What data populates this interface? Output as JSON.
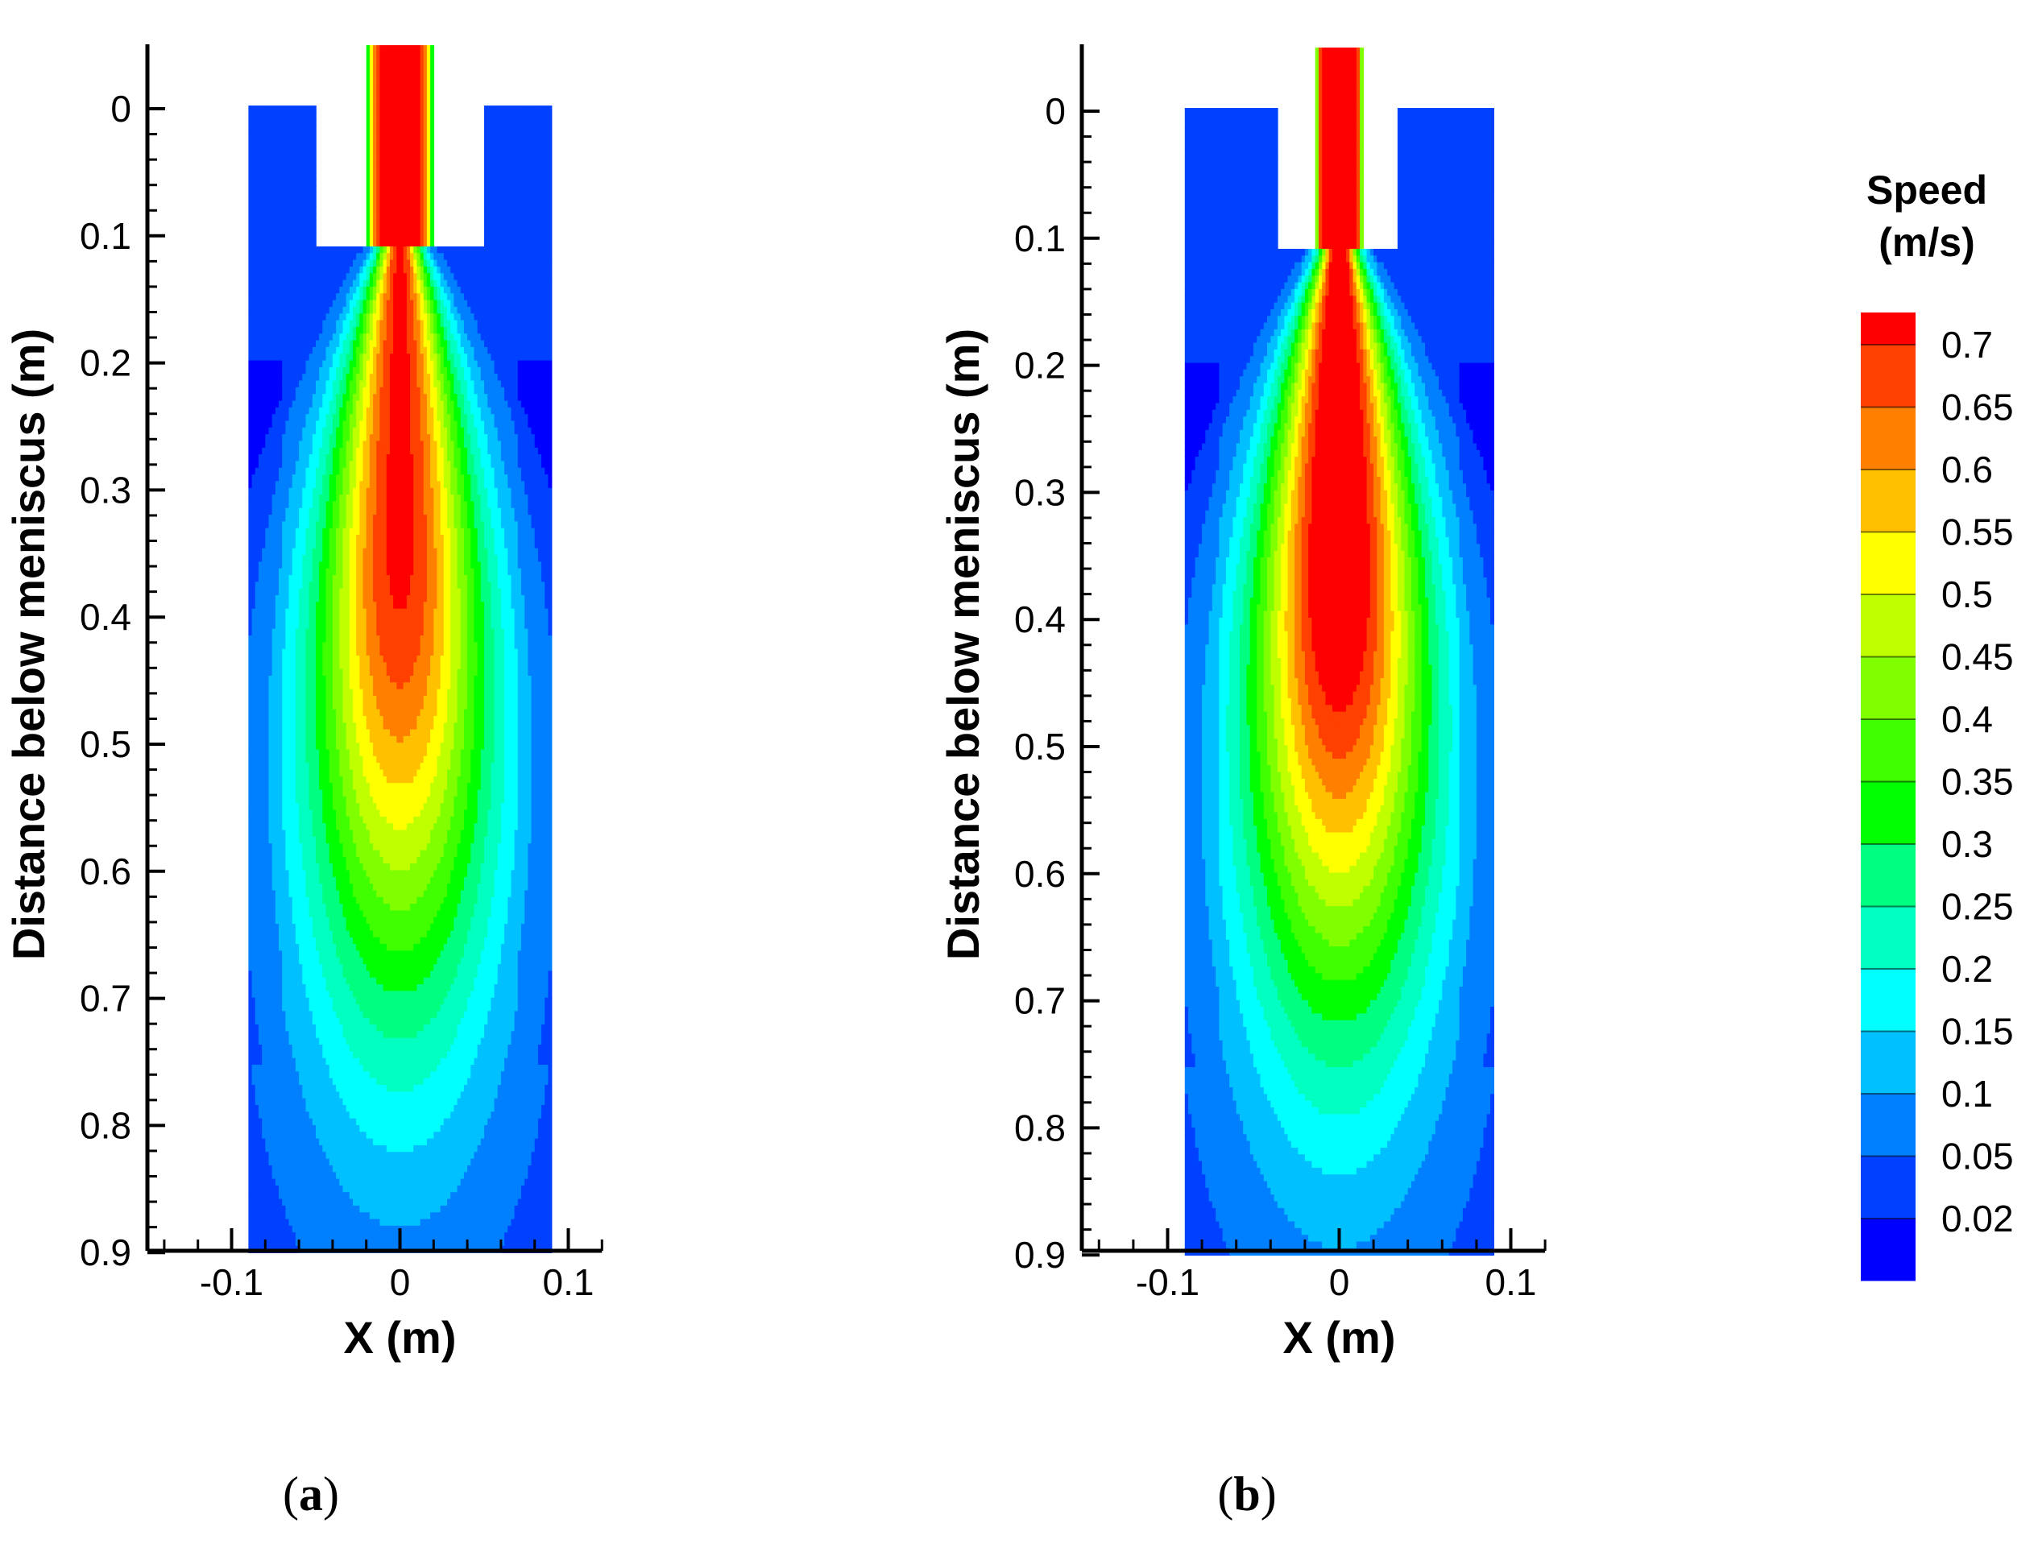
{
  "chart_data": [
    {
      "type": "heatmap",
      "panel_label": "(a)",
      "panel_letter": "a",
      "xlabel": "X (m)",
      "ylabel": "Distance below meniscus (m)",
      "xlim": [
        -0.15,
        0.12
      ],
      "ylim": [
        -0.05,
        0.9
      ],
      "y_inverted": true,
      "xticks": [
        -0.1,
        0,
        0.1
      ],
      "xtick_labels": [
        "-0.1",
        "0",
        "0.1"
      ],
      "yticks": [
        0,
        0.1,
        0.2,
        0.3,
        0.4,
        0.5,
        0.6,
        0.7,
        0.8,
        0.9
      ],
      "ytick_labels": [
        "0",
        "0.1",
        "0.2",
        "0.3",
        "0.4",
        "0.5",
        "0.6",
        "0.7",
        "0.8",
        "0.9"
      ],
      "domain": {
        "x_min": -0.09,
        "x_max": 0.09,
        "y_top": 0,
        "y_bottom": 0.9
      },
      "nozzle": {
        "wall_inner_half_width": 0.02,
        "wall_outer_half_width": 0.05,
        "bottom_depth": 0.11
      },
      "jet": {
        "core_half_width": 0.016,
        "core_length": 0.4,
        "spread_start_depth": 0.11,
        "max_half_width": 0.085,
        "decay_depth": 0.78
      },
      "max_speed": 0.72
    },
    {
      "type": "heatmap",
      "panel_label": "(b)",
      "panel_letter": "b",
      "xlabel": "X (m)",
      "ylabel": "Distance below meniscus (m)",
      "xlim": [
        -0.15,
        0.12
      ],
      "ylim": [
        -0.05,
        0.9
      ],
      "y_inverted": true,
      "xticks": [
        -0.1,
        0,
        0.1
      ],
      "xtick_labels": [
        "-0.1",
        "0",
        "0.1"
      ],
      "yticks": [
        0,
        0.1,
        0.2,
        0.3,
        0.4,
        0.5,
        0.6,
        0.7,
        0.8,
        0.9
      ],
      "ytick_labels": [
        "0",
        "0.1",
        "0.2",
        "0.3",
        "0.4",
        "0.5",
        "0.6",
        "0.7",
        "0.8",
        "0.9"
      ],
      "domain": {
        "x_min": -0.09,
        "x_max": 0.09,
        "y_top": 0,
        "y_bottom": 0.9
      },
      "nozzle": {
        "wall_inner_half_width": 0.014,
        "wall_outer_half_width": 0.035,
        "bottom_depth": 0.11
      },
      "jet": {
        "core_half_width": 0.014,
        "core_length": 0.4,
        "spread_start_depth": 0.11,
        "max_half_width": 0.085,
        "decay_depth": 0.78
      },
      "max_speed": 0.8
    }
  ],
  "legend": {
    "title_line1": "Speed",
    "title_line2": "(m/s)",
    "levels": [
      "0.7",
      "0.65",
      "0.6",
      "0.55",
      "0.5",
      "0.45",
      "0.4",
      "0.35",
      "0.3",
      "0.25",
      "0.2",
      "0.15",
      "0.1",
      "0.05",
      "0.02"
    ],
    "colors": [
      "#ff0000",
      "#ff4000",
      "#ff8000",
      "#ffc000",
      "#ffff00",
      "#c0ff00",
      "#80ff00",
      "#40ff00",
      "#00ff00",
      "#00ff80",
      "#00ffc0",
      "#00ffff",
      "#00c0ff",
      "#0080ff",
      "#0040ff",
      "#0000ff"
    ]
  }
}
